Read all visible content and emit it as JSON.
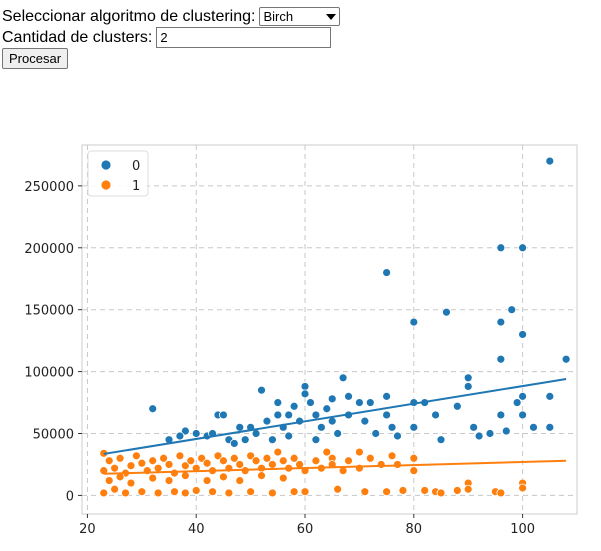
{
  "form": {
    "algorithm_label": "Seleccionar algoritmo de clustering:",
    "algorithm_value": "Birch",
    "clusters_label": "Cantidad de clusters:",
    "clusters_value": "2",
    "process_button": "Procesar"
  },
  "chart_data": {
    "type": "scatter",
    "title": "",
    "xlabel": "",
    "ylabel": "",
    "xlim": [
      19,
      110
    ],
    "ylim": [
      -15000,
      283000
    ],
    "x_ticks": [
      20,
      40,
      60,
      80,
      100
    ],
    "y_ticks": [
      0,
      50000,
      100000,
      150000,
      200000,
      250000
    ],
    "grid": true,
    "legend_position": "top-left",
    "colors": {
      "0": "#1f77b4",
      "1": "#ff7f0e"
    },
    "series": [
      {
        "name": "0",
        "color": "#1f77b4",
        "points": [
          [
            32,
            70000
          ],
          [
            38,
            52000
          ],
          [
            40,
            50000
          ],
          [
            42,
            48000
          ],
          [
            44,
            65000
          ],
          [
            45,
            65000
          ],
          [
            46,
            45000
          ],
          [
            48,
            55000
          ],
          [
            50,
            55000
          ],
          [
            52,
            85000
          ],
          [
            53,
            60000
          ],
          [
            55,
            75000
          ],
          [
            55,
            65000
          ],
          [
            56,
            55000
          ],
          [
            57,
            48000
          ],
          [
            58,
            72000
          ],
          [
            60,
            88000
          ],
          [
            60,
            82000
          ],
          [
            61,
            75000
          ],
          [
            62,
            65000
          ],
          [
            63,
            55000
          ],
          [
            64,
            70000
          ],
          [
            65,
            78000
          ],
          [
            65,
            60000
          ],
          [
            66,
            50000
          ],
          [
            67,
            95000
          ],
          [
            68,
            80000
          ],
          [
            68,
            65000
          ],
          [
            70,
            75000
          ],
          [
            71,
            60000
          ],
          [
            72,
            75000
          ],
          [
            73,
            50000
          ],
          [
            75,
            180000
          ],
          [
            75,
            80000
          ],
          [
            75,
            65000
          ],
          [
            76,
            55000
          ],
          [
            77,
            48000
          ],
          [
            80,
            140000
          ],
          [
            80,
            75000
          ],
          [
            80,
            55000
          ],
          [
            82,
            75000
          ],
          [
            84,
            65000
          ],
          [
            85,
            45000
          ],
          [
            86,
            148000
          ],
          [
            88,
            72000
          ],
          [
            90,
            95000
          ],
          [
            90,
            88000
          ],
          [
            91,
            55000
          ],
          [
            92,
            48000
          ],
          [
            94,
            50000
          ],
          [
            96,
            200000
          ],
          [
            96,
            140000
          ],
          [
            96,
            110000
          ],
          [
            96,
            65000
          ],
          [
            97,
            52000
          ],
          [
            98,
            150000
          ],
          [
            99,
            75000
          ],
          [
            100,
            200000
          ],
          [
            100,
            130000
          ],
          [
            100,
            80000
          ],
          [
            100,
            65000
          ],
          [
            102,
            55000
          ],
          [
            105,
            270000
          ],
          [
            105,
            80000
          ],
          [
            105,
            55000
          ],
          [
            108,
            110000
          ],
          [
            35,
            45000
          ],
          [
            37,
            48000
          ],
          [
            43,
            50000
          ],
          [
            47,
            42000
          ],
          [
            49,
            45000
          ],
          [
            51,
            50000
          ],
          [
            54,
            45000
          ],
          [
            57,
            65000
          ],
          [
            59,
            60000
          ],
          [
            62,
            45000
          ]
        ],
        "trend": [
          [
            23,
            33500
          ],
          [
            108,
            94000
          ]
        ]
      },
      {
        "name": "1",
        "color": "#ff7f0e",
        "points": [
          [
            23,
            34000
          ],
          [
            23,
            20000
          ],
          [
            23,
            2000
          ],
          [
            24,
            28000
          ],
          [
            25,
            22000
          ],
          [
            25,
            5000
          ],
          [
            26,
            30000
          ],
          [
            27,
            18000
          ],
          [
            27,
            2000
          ],
          [
            28,
            24000
          ],
          [
            29,
            32000
          ],
          [
            30,
            26000
          ],
          [
            30,
            3000
          ],
          [
            31,
            20000
          ],
          [
            32,
            28000
          ],
          [
            33,
            22000
          ],
          [
            33,
            2000
          ],
          [
            34,
            30000
          ],
          [
            35,
            25000
          ],
          [
            36,
            18000
          ],
          [
            36,
            3000
          ],
          [
            37,
            32000
          ],
          [
            38,
            24000
          ],
          [
            38,
            2000
          ],
          [
            39,
            28000
          ],
          [
            40,
            22000
          ],
          [
            40,
            4000
          ],
          [
            41,
            30000
          ],
          [
            42,
            26000
          ],
          [
            43,
            20000
          ],
          [
            43,
            3000
          ],
          [
            44,
            32000
          ],
          [
            45,
            28000
          ],
          [
            46,
            22000
          ],
          [
            46,
            2000
          ],
          [
            47,
            30000
          ],
          [
            48,
            25000
          ],
          [
            49,
            20000
          ],
          [
            50,
            32000
          ],
          [
            50,
            3000
          ],
          [
            51,
            28000
          ],
          [
            52,
            22000
          ],
          [
            53,
            30000
          ],
          [
            54,
            25000
          ],
          [
            54,
            2000
          ],
          [
            55,
            35000
          ],
          [
            56,
            28000
          ],
          [
            57,
            22000
          ],
          [
            58,
            30000
          ],
          [
            58,
            3000
          ],
          [
            59,
            25000
          ],
          [
            60,
            20000
          ],
          [
            60,
            3000
          ],
          [
            62,
            28000
          ],
          [
            63,
            22000
          ],
          [
            64,
            35000
          ],
          [
            65,
            30000
          ],
          [
            65,
            25000
          ],
          [
            66,
            5000
          ],
          [
            67,
            20000
          ],
          [
            68,
            28000
          ],
          [
            70,
            35000
          ],
          [
            70,
            22000
          ],
          [
            71,
            3000
          ],
          [
            72,
            30000
          ],
          [
            74,
            25000
          ],
          [
            75,
            3000
          ],
          [
            76,
            32000
          ],
          [
            77,
            25000
          ],
          [
            78,
            4000
          ],
          [
            80,
            30000
          ],
          [
            80,
            20000
          ],
          [
            82,
            4000
          ],
          [
            84,
            3000
          ],
          [
            85,
            2000
          ],
          [
            88,
            4000
          ],
          [
            90,
            10000
          ],
          [
            90,
            5000
          ],
          [
            95,
            3000
          ],
          [
            96,
            2000
          ],
          [
            100,
            10000
          ],
          [
            100,
            6000
          ],
          [
            24,
            12000
          ],
          [
            26,
            15000
          ],
          [
            28,
            10000
          ],
          [
            32,
            14000
          ],
          [
            35,
            12000
          ],
          [
            38,
            16000
          ],
          [
            42,
            12000
          ],
          [
            45,
            15000
          ],
          [
            48,
            12000
          ],
          [
            52,
            16000
          ],
          [
            56,
            14000
          ]
        ],
        "trend": [
          [
            23,
            17500
          ],
          [
            108,
            28000
          ]
        ]
      }
    ]
  }
}
